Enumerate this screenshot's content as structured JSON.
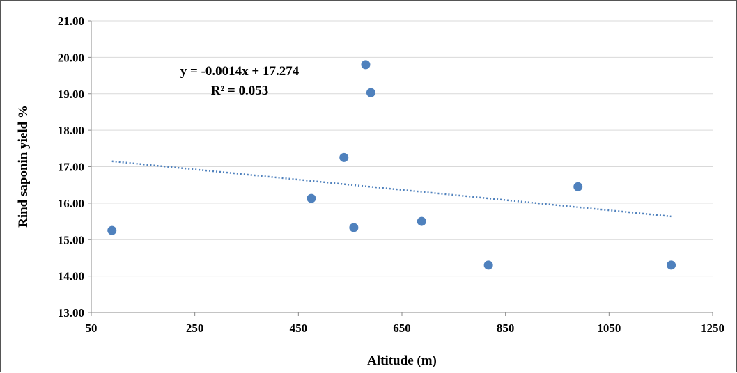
{
  "chart_data": {
    "type": "scatter",
    "title": "",
    "xlabel": "Altitude (m)",
    "ylabel": "Rind saponin yield %",
    "xlim": [
      50,
      1250
    ],
    "ylim": [
      13.0,
      21.0
    ],
    "x_ticks": [
      "50",
      "250",
      "450",
      "650",
      "850",
      "1050",
      "1250"
    ],
    "y_ticks": [
      "13.00",
      "14.00",
      "15.00",
      "16.00",
      "17.00",
      "18.00",
      "19.00",
      "20.00",
      "21.00"
    ],
    "grid": true,
    "points": [
      {
        "x": 90,
        "y": 15.25
      },
      {
        "x": 475,
        "y": 16.13
      },
      {
        "x": 538,
        "y": 17.25
      },
      {
        "x": 557,
        "y": 15.33
      },
      {
        "x": 580,
        "y": 19.8
      },
      {
        "x": 590,
        "y": 19.03
      },
      {
        "x": 688,
        "y": 15.5
      },
      {
        "x": 817,
        "y": 14.3
      },
      {
        "x": 990,
        "y": 16.45
      },
      {
        "x": 1170,
        "y": 14.3
      }
    ],
    "trendline": {
      "type": "linear",
      "slope": -0.0014,
      "intercept": 17.274,
      "x_range": [
        90,
        1170
      ],
      "equation": "y = -0.0014x + 17.274",
      "r_squared": "R² = 0.053"
    },
    "colors": {
      "points": "#4f81bd",
      "trendline": "#4f81bd",
      "grid": "#d9d9d9"
    }
  }
}
